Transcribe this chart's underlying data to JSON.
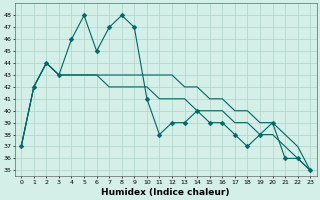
{
  "xlabel": "Humidex (Indice chaleur)",
  "ylabel": "",
  "bg_color": "#d4eee8",
  "grid_color": "#b0d4c8",
  "line_color": "#006666",
  "ylim": [
    34.5,
    49
  ],
  "xlim": [
    -0.5,
    23.5
  ],
  "yticks": [
    35,
    36,
    37,
    38,
    39,
    40,
    41,
    42,
    43,
    44,
    45,
    46,
    47,
    48
  ],
  "xticks": [
    0,
    1,
    2,
    3,
    4,
    5,
    6,
    7,
    8,
    9,
    10,
    11,
    12,
    13,
    14,
    15,
    16,
    17,
    18,
    19,
    20,
    21,
    22,
    23
  ],
  "line1": [
    37,
    42,
    44,
    43,
    46,
    48,
    45,
    47,
    48,
    47,
    41,
    38,
    39,
    39,
    40,
    39,
    39,
    38,
    37,
    38,
    39,
    36,
    36,
    35
  ],
  "line2": [
    37,
    42,
    44,
    43,
    43,
    43,
    43,
    43,
    43,
    43,
    43,
    43,
    43,
    42,
    42,
    41,
    41,
    40,
    40,
    39,
    39,
    38,
    37,
    35
  ],
  "line3": [
    37,
    42,
    44,
    43,
    43,
    43,
    43,
    42,
    42,
    42,
    42,
    41,
    41,
    41,
    40,
    40,
    40,
    39,
    39,
    38,
    38,
    37,
    36,
    35
  ],
  "markersize": 2.5,
  "linewidth": 0.8,
  "tick_fontsize": 4.5,
  "xlabel_fontsize": 6.5
}
